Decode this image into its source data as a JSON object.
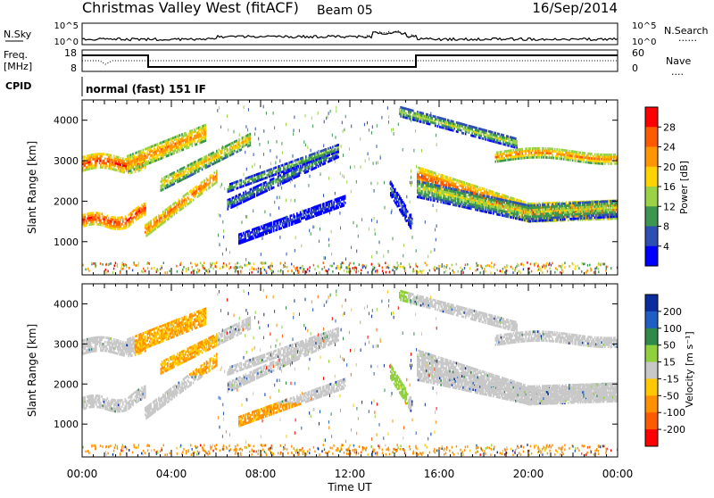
{
  "header": {
    "station": "Christmas Valley West (fitACF)",
    "beam": "Beam 05",
    "date": "16/Sep/2014"
  },
  "panels": {
    "nsky": {
      "left_label": "N.Sky",
      "left_ticks": [
        "10^5",
        "10^0"
      ],
      "right_ticks": [
        "10^5",
        "10^0"
      ],
      "right_label": "N.Search",
      "right_line": "......"
    },
    "freq": {
      "left_label_1": "Freq.",
      "left_label_2": "[MHz]",
      "left_ticks": [
        "18",
        "8"
      ],
      "right_ticks": [
        "60",
        "0"
      ],
      "right_label": "Nave",
      "right_line": "...."
    },
    "cpid": {
      "label": "CPID",
      "text": "normal (fast) 151 IF"
    }
  },
  "chart_data": [
    {
      "type": "heatmap",
      "name": "power",
      "ylabel": "Slant Range [km]",
      "yticks": [
        "4000",
        "3000",
        "2000",
        "1000"
      ],
      "ytick_values": [
        4000,
        3000,
        2000,
        1000
      ],
      "ylim": [
        180,
        4500
      ],
      "xlim": [
        0,
        24
      ],
      "colorbar": {
        "label": "Power [dB]",
        "ticks": [
          "28",
          "24",
          "20",
          "16",
          "12",
          "8",
          "4"
        ],
        "colors": [
          "#ff0000",
          "#ff5a00",
          "#ff9600",
          "#ffd200",
          "#9bd246",
          "#3c9650",
          "#2d4fb4",
          "#0000ff"
        ]
      }
    },
    {
      "type": "heatmap",
      "name": "velocity",
      "ylabel": "Slant Range [km]",
      "yticks": [
        "4000",
        "3000",
        "2000",
        "1000"
      ],
      "ytick_values": [
        4000,
        3000,
        2000,
        1000
      ],
      "ylim": [
        180,
        4500
      ],
      "xlim": [
        0,
        24
      ],
      "colorbar": {
        "label": "Velocity [m s⁻¹]",
        "ticks": [
          "200",
          "100",
          "50",
          "15",
          "-15",
          "-50",
          "-100",
          "-200"
        ],
        "colors": [
          "#0b2c9c",
          "#1f5fc4",
          "#2f8a4a",
          "#8fd03c",
          "#c8c8c8",
          "#ffc800",
          "#ff9000",
          "#ff5a00",
          "#ff0000"
        ]
      }
    }
  ],
  "xaxis": {
    "label": "Time UT",
    "ticks": [
      "00:00",
      "04:00",
      "08:00",
      "12:00",
      "16:00",
      "20:00",
      "00:00"
    ]
  }
}
